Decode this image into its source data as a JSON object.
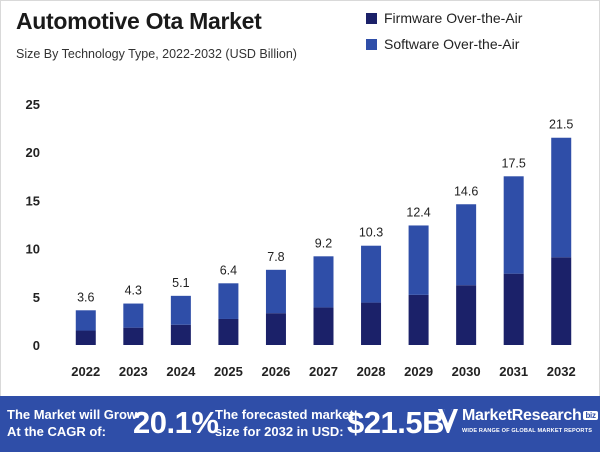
{
  "header": {
    "title": "Automotive Ota Market",
    "subtitle": "Size By Technology Type, 2022-2032 (USD Billion)"
  },
  "legend": [
    {
      "label": "Firmware Over-the-Air",
      "color": "#1b2169"
    },
    {
      "label": "Software Over-the-Air",
      "color": "#2f4ea8"
    }
  ],
  "chart_data": {
    "type": "bar",
    "stacked": true,
    "title": "Automotive Ota Market",
    "subtitle": "Size By Technology Type, 2022-2032 (USD Billion)",
    "categories": [
      "2022",
      "2023",
      "2024",
      "2025",
      "2026",
      "2027",
      "2028",
      "2029",
      "2030",
      "2031",
      "2032"
    ],
    "series": [
      {
        "name": "Firmware Over-the-Air",
        "color": "#1b2169",
        "values": [
          1.5,
          1.8,
          2.1,
          2.7,
          3.3,
          3.9,
          4.4,
          5.2,
          6.2,
          7.4,
          9.1
        ]
      },
      {
        "name": "Software Over-the-Air",
        "color": "#2f4ea8",
        "values": [
          2.1,
          2.5,
          3.0,
          3.7,
          4.5,
          5.3,
          5.9,
          7.2,
          8.4,
          10.1,
          12.4
        ]
      }
    ],
    "totals": [
      "3.6",
      "4.3",
      "5.1",
      "6.4",
      "7.8",
      "9.2",
      "10.3",
      "12.4",
      "14.6",
      "17.5",
      "21.5"
    ],
    "yticks": [
      "0",
      "5",
      "10",
      "15",
      "20",
      "25"
    ],
    "ylim": [
      0,
      25
    ],
    "xlabel": "",
    "ylabel": "",
    "grid": false,
    "legend_position": "top-right"
  },
  "footer": {
    "cagr_label_line1": "The Market will Grow",
    "cagr_label_line2": "At the CAGR of:",
    "cagr_value": "20.1%",
    "forecast_label_line1": "The forecasted market",
    "forecast_label_line2": "size for 2032 in USD:",
    "forecast_value": "$21.5B",
    "brand_name": "MarketResearch",
    "brand_badge": "biz",
    "brand_tagline": "WIDE RANGE OF GLOBAL MARKET REPORTS"
  }
}
